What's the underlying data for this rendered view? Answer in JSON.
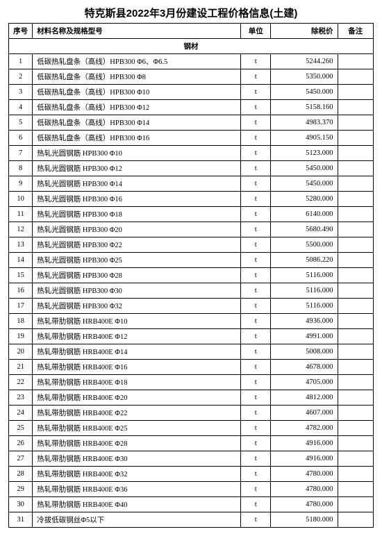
{
  "title": "特克斯县2022年3月份建设工程价格信息(土建)",
  "columns": {
    "seq": "序号",
    "name": "材料名称及规格型号",
    "unit": "单位",
    "price": "除税价",
    "note": "备注"
  },
  "section_label": "钢材",
  "rows": [
    {
      "seq": "1",
      "name": "低碳热轧盘条（高线）HPB300 Φ6、Φ6.5",
      "unit": "t",
      "price": "5244.260"
    },
    {
      "seq": "2",
      "name": "低碳热轧盘条（高线）HPB300 Φ8",
      "unit": "t",
      "price": "5350.000"
    },
    {
      "seq": "3",
      "name": "低碳热轧盘条（高线）HPB300 Φ10",
      "unit": "t",
      "price": "5450.000"
    },
    {
      "seq": "4",
      "name": "低碳热轧盘条（高线）HPB300 Φ12",
      "unit": "t",
      "price": "5158.160"
    },
    {
      "seq": "5",
      "name": "低碳热轧盘条（高线）HPB300 Φ14",
      "unit": "t",
      "price": "4983.370"
    },
    {
      "seq": "6",
      "name": "低碳热轧盘条（高线）HPB300 Φ16",
      "unit": "t",
      "price": "4905.150"
    },
    {
      "seq": "7",
      "name": "热轧光圆钢筋 HPB300 Φ10",
      "unit": "t",
      "price": "5123.000"
    },
    {
      "seq": "8",
      "name": "热轧光圆钢筋 HPB300 Φ12",
      "unit": "t",
      "price": "5450.000"
    },
    {
      "seq": "9",
      "name": "热轧光圆钢筋 HPB300 Φ14",
      "unit": "t",
      "price": "5450.000"
    },
    {
      "seq": "10",
      "name": "热轧光圆钢筋 HPB300 Φ16",
      "unit": "t",
      "price": "5280.000"
    },
    {
      "seq": "11",
      "name": "热轧光圆钢筋 HPB300 Φ18",
      "unit": "t",
      "price": "6140.000"
    },
    {
      "seq": "12",
      "name": "热轧光圆钢筋 HPB300 Φ20",
      "unit": "t",
      "price": "5680.490"
    },
    {
      "seq": "13",
      "name": "热轧光圆钢筋 HPB300 Φ22",
      "unit": "t",
      "price": "5500.000"
    },
    {
      "seq": "14",
      "name": "热轧光圆钢筋 HPB300 Φ25",
      "unit": "t",
      "price": "5086.220"
    },
    {
      "seq": "15",
      "name": "热轧光圆钢筋 HPB300 Φ28",
      "unit": "t",
      "price": "5116.000"
    },
    {
      "seq": "16",
      "name": "热轧光圆钢筋 HPB300 Φ30",
      "unit": "t",
      "price": "5116.000"
    },
    {
      "seq": "17",
      "name": "热轧光圆钢筋 HPB300 Φ32",
      "unit": "t",
      "price": "5116.000"
    },
    {
      "seq": "18",
      "name": "热轧带肋钢筋 HRB400E Φ10",
      "unit": "t",
      "price": "4936.000"
    },
    {
      "seq": "19",
      "name": "热轧带肋钢筋 HRB400E Φ12",
      "unit": "t",
      "price": "4991.000"
    },
    {
      "seq": "20",
      "name": "热轧带肋钢筋 HRB400E Φ14",
      "unit": "t",
      "price": "5008.000"
    },
    {
      "seq": "21",
      "name": "热轧带肋钢筋 HRB400E Φ16",
      "unit": "t",
      "price": "4678.000"
    },
    {
      "seq": "22",
      "name": "热轧带肋钢筋 HRB400E Φ18",
      "unit": "t",
      "price": "4705.000"
    },
    {
      "seq": "23",
      "name": "热轧带肋钢筋 HRB400E Φ20",
      "unit": "t",
      "price": "4812.000"
    },
    {
      "seq": "24",
      "name": "热轧带肋钢筋 HRB400E Φ22",
      "unit": "t",
      "price": "4607.000"
    },
    {
      "seq": "25",
      "name": "热轧带肋钢筋 HRB400E Φ25",
      "unit": "t",
      "price": "4782.000"
    },
    {
      "seq": "26",
      "name": "热轧带肋钢筋 HRB400E Φ28",
      "unit": "t",
      "price": "4916.000"
    },
    {
      "seq": "27",
      "name": "热轧带肋钢筋 HRB400E Φ30",
      "unit": "t",
      "price": "4916.000"
    },
    {
      "seq": "28",
      "name": "热轧带肋钢筋 HRB400E Φ32",
      "unit": "t",
      "price": "4780.000"
    },
    {
      "seq": "29",
      "name": "热轧带肋钢筋 HRB400E Φ36",
      "unit": "t",
      "price": "4780.000"
    },
    {
      "seq": "30",
      "name": "热轧带肋钢筋 HRB400E Φ40",
      "unit": "t",
      "price": "4780.000"
    },
    {
      "seq": "31",
      "name": "冷拔低碳钢丝Φ5以下",
      "unit": "t",
      "price": "5180.000"
    }
  ]
}
